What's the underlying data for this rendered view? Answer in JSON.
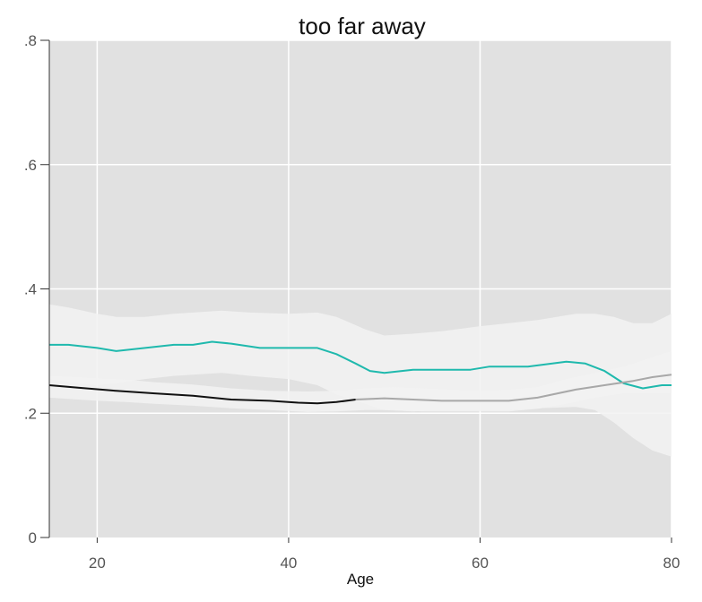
{
  "chart_data": {
    "type": "line",
    "title": "too far away",
    "xlabel": "Age",
    "ylabel": "",
    "xlim": [
      15,
      80
    ],
    "ylim": [
      0,
      0.8
    ],
    "x_ticks": [
      20,
      40,
      60,
      80
    ],
    "x_tick_labels": [
      "20",
      "40",
      "60",
      "80"
    ],
    "y_ticks": [
      0,
      0.2,
      0.4,
      0.6,
      0.8
    ],
    "y_tick_labels": [
      "0",
      ".2",
      ".4",
      ".6",
      ".8"
    ],
    "grid": true,
    "colors": {
      "panel": "#e1e1e1",
      "grid": "#ffffff",
      "band": "#f2f2f2",
      "teal": "#1fb9ad",
      "black": "#111111",
      "gray": "#a8a8a8"
    },
    "bands": [
      {
        "x": [
          15,
          17,
          20,
          22,
          25,
          28,
          30,
          33,
          36,
          40,
          43,
          45,
          48,
          50,
          53,
          56,
          60,
          63,
          66,
          70,
          72,
          74,
          76,
          78,
          80
        ],
        "lower": [
          0.255,
          0.25,
          0.245,
          0.248,
          0.255,
          0.26,
          0.262,
          0.265,
          0.26,
          0.255,
          0.245,
          0.23,
          0.215,
          0.205,
          0.203,
          0.205,
          0.205,
          0.205,
          0.208,
          0.21,
          0.205,
          0.185,
          0.16,
          0.14,
          0.13
        ],
        "upper": [
          0.375,
          0.37,
          0.36,
          0.355,
          0.355,
          0.36,
          0.362,
          0.365,
          0.362,
          0.36,
          0.362,
          0.355,
          0.335,
          0.325,
          0.328,
          0.332,
          0.34,
          0.345,
          0.35,
          0.36,
          0.36,
          0.355,
          0.345,
          0.345,
          0.36
        ]
      },
      {
        "x": [
          15,
          18,
          20,
          23,
          26,
          30,
          34,
          38,
          42,
          45,
          48,
          51,
          54,
          57,
          60,
          63,
          66,
          69,
          72,
          75,
          78,
          80
        ],
        "lower": [
          0.225,
          0.222,
          0.22,
          0.218,
          0.215,
          0.212,
          0.208,
          0.205,
          0.202,
          0.203,
          0.205,
          0.205,
          0.203,
          0.203,
          0.203,
          0.203,
          0.207,
          0.215,
          0.225,
          0.232,
          0.232,
          0.232
        ],
        "upper": [
          0.26,
          0.258,
          0.256,
          0.254,
          0.25,
          0.246,
          0.24,
          0.236,
          0.235,
          0.236,
          0.24,
          0.242,
          0.24,
          0.238,
          0.236,
          0.238,
          0.242,
          0.255,
          0.265,
          0.275,
          0.29,
          0.3
        ]
      }
    ],
    "series": [
      {
        "color": "teal",
        "x": [
          15,
          17,
          20,
          22,
          25,
          28,
          30,
          32,
          34,
          37,
          40,
          43,
          45,
          47,
          48.5,
          50,
          53,
          56,
          59,
          61,
          65,
          69,
          71,
          73,
          75,
          77,
          79,
          80
        ],
        "y": [
          0.31,
          0.31,
          0.305,
          0.3,
          0.305,
          0.31,
          0.31,
          0.315,
          0.312,
          0.305,
          0.305,
          0.305,
          0.295,
          0.28,
          0.268,
          0.265,
          0.27,
          0.27,
          0.27,
          0.275,
          0.275,
          0.283,
          0.28,
          0.268,
          0.248,
          0.24,
          0.245,
          0.245
        ]
      },
      {
        "color": "black",
        "x": [
          15,
          18,
          22,
          26,
          30,
          34,
          38,
          41,
          43,
          45,
          47
        ],
        "y": [
          0.245,
          0.241,
          0.236,
          0.232,
          0.228,
          0.222,
          0.22,
          0.217,
          0.216,
          0.218,
          0.222
        ]
      },
      {
        "color": "gray",
        "x": [
          47,
          50,
          53,
          56,
          60,
          63,
          66,
          70,
          73,
          76,
          78,
          80
        ],
        "y": [
          0.222,
          0.224,
          0.222,
          0.22,
          0.22,
          0.22,
          0.225,
          0.238,
          0.245,
          0.252,
          0.258,
          0.262
        ]
      }
    ]
  }
}
